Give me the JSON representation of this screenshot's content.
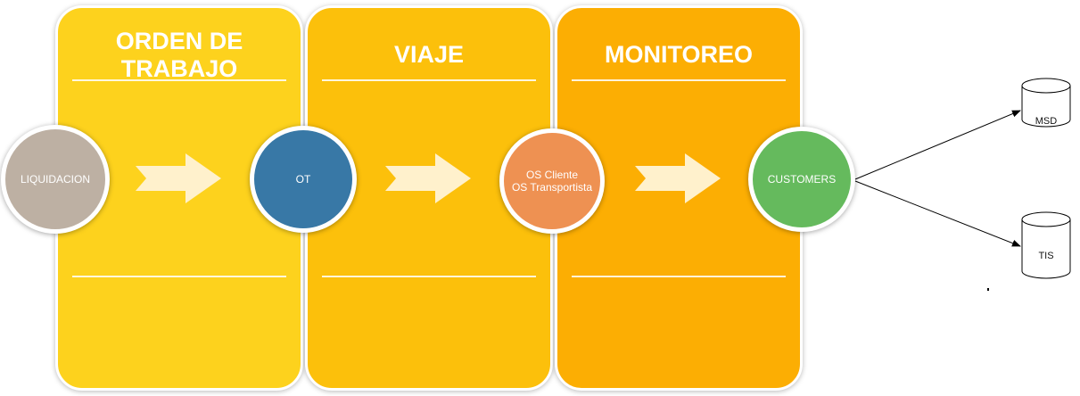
{
  "stages": [
    {
      "title": "ORDEN DE\nTRABAJO",
      "color": "#fdd21d"
    },
    {
      "title": "VIAJE",
      "color": "#fcc00b"
    },
    {
      "title": "MONITOREO",
      "color": "#fcae03"
    }
  ],
  "nodes": {
    "liquidacion": {
      "label": "LIQUIDACION",
      "color": "#bdb0a3"
    },
    "ot": {
      "label": "OT",
      "color": "#3878a6"
    },
    "os": {
      "label": "OS Cliente\nOS Transportista",
      "color": "#ee9152"
    },
    "customers": {
      "label": "CUSTOMERS",
      "color": "#65ba5d"
    }
  },
  "databases": [
    {
      "label": "MSD"
    },
    {
      "label": "TIS"
    }
  ],
  "connectors": [
    {
      "from": "CUSTOMERS",
      "to": "MSD"
    },
    {
      "from": "CUSTOMERS",
      "to": "TIS"
    }
  ],
  "colors": {
    "arrow_fill": "#fff1cc",
    "line": "#000000",
    "stage_border": "#ffffff"
  }
}
